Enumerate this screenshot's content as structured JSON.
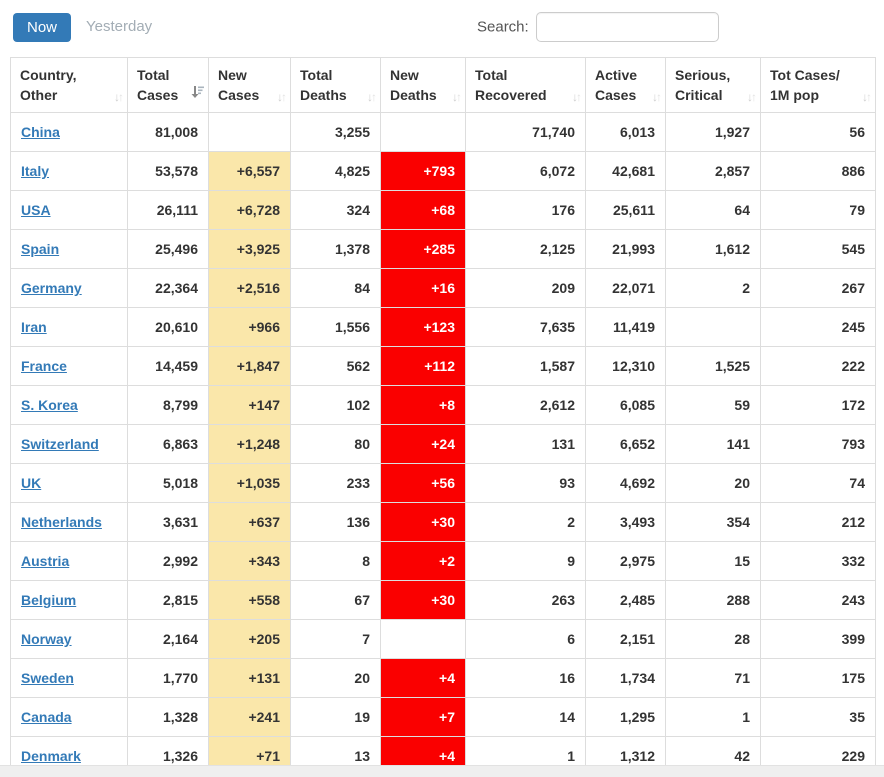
{
  "tabs": {
    "now": "Now",
    "yesterday": "Yesterday"
  },
  "search": {
    "label": "Search:",
    "value": "",
    "placeholder": ""
  },
  "colors": {
    "accent": "#337ab7",
    "link": "#337ab7",
    "new_cases_bg": "#FAE7AA",
    "new_deaths_bg": "#FA0000",
    "inactive_tab_text": "#a3adb5"
  },
  "icons": {
    "sort_unsorted": "sort-both-icon",
    "sort_active": "sort-descending-icon"
  },
  "table": {
    "columns": [
      {
        "id": "country",
        "lines": [
          "Country,",
          "Other"
        ],
        "sort": "unsorted"
      },
      {
        "id": "total_cases",
        "lines": [
          "Total",
          "Cases"
        ],
        "sort": "desc"
      },
      {
        "id": "new_cases",
        "lines": [
          "New",
          "Cases"
        ],
        "sort": "unsorted"
      },
      {
        "id": "total_deaths",
        "lines": [
          "Total",
          "Deaths"
        ],
        "sort": "unsorted"
      },
      {
        "id": "new_deaths",
        "lines": [
          "New",
          "Deaths"
        ],
        "sort": "unsorted"
      },
      {
        "id": "total_recovered",
        "lines": [
          "Total",
          "Recovered"
        ],
        "sort": "unsorted"
      },
      {
        "id": "active_cases",
        "lines": [
          "Active",
          "Cases"
        ],
        "sort": "unsorted"
      },
      {
        "id": "serious_critical",
        "lines": [
          "Serious,",
          "Critical"
        ],
        "sort": "unsorted"
      },
      {
        "id": "cases_1m_pop",
        "lines": [
          "Tot Cases/",
          "1M pop"
        ],
        "sort": "unsorted"
      }
    ],
    "rows": [
      {
        "country": "China",
        "total_cases": "81,008",
        "new_cases": "",
        "total_deaths": "3,255",
        "new_deaths": "",
        "total_recovered": "71,740",
        "active_cases": "6,013",
        "serious_critical": "1,927",
        "cases_1m_pop": "56"
      },
      {
        "country": "Italy",
        "total_cases": "53,578",
        "new_cases": "+6,557",
        "total_deaths": "4,825",
        "new_deaths": "+793",
        "total_recovered": "6,072",
        "active_cases": "42,681",
        "serious_critical": "2,857",
        "cases_1m_pop": "886"
      },
      {
        "country": "USA",
        "total_cases": "26,111",
        "new_cases": "+6,728",
        "total_deaths": "324",
        "new_deaths": "+68",
        "total_recovered": "176",
        "active_cases": "25,611",
        "serious_critical": "64",
        "cases_1m_pop": "79"
      },
      {
        "country": "Spain",
        "total_cases": "25,496",
        "new_cases": "+3,925",
        "total_deaths": "1,378",
        "new_deaths": "+285",
        "total_recovered": "2,125",
        "active_cases": "21,993",
        "serious_critical": "1,612",
        "cases_1m_pop": "545"
      },
      {
        "country": "Germany",
        "total_cases": "22,364",
        "new_cases": "+2,516",
        "total_deaths": "84",
        "new_deaths": "+16",
        "total_recovered": "209",
        "active_cases": "22,071",
        "serious_critical": "2",
        "cases_1m_pop": "267"
      },
      {
        "country": "Iran",
        "total_cases": "20,610",
        "new_cases": "+966",
        "total_deaths": "1,556",
        "new_deaths": "+123",
        "total_recovered": "7,635",
        "active_cases": "11,419",
        "serious_critical": "",
        "cases_1m_pop": "245"
      },
      {
        "country": "France",
        "total_cases": "14,459",
        "new_cases": "+1,847",
        "total_deaths": "562",
        "new_deaths": "+112",
        "total_recovered": "1,587",
        "active_cases": "12,310",
        "serious_critical": "1,525",
        "cases_1m_pop": "222"
      },
      {
        "country": "S. Korea",
        "total_cases": "8,799",
        "new_cases": "+147",
        "total_deaths": "102",
        "new_deaths": "+8",
        "total_recovered": "2,612",
        "active_cases": "6,085",
        "serious_critical": "59",
        "cases_1m_pop": "172"
      },
      {
        "country": "Switzerland",
        "total_cases": "6,863",
        "new_cases": "+1,248",
        "total_deaths": "80",
        "new_deaths": "+24",
        "total_recovered": "131",
        "active_cases": "6,652",
        "serious_critical": "141",
        "cases_1m_pop": "793"
      },
      {
        "country": "UK",
        "total_cases": "5,018",
        "new_cases": "+1,035",
        "total_deaths": "233",
        "new_deaths": "+56",
        "total_recovered": "93",
        "active_cases": "4,692",
        "serious_critical": "20",
        "cases_1m_pop": "74"
      },
      {
        "country": "Netherlands",
        "total_cases": "3,631",
        "new_cases": "+637",
        "total_deaths": "136",
        "new_deaths": "+30",
        "total_recovered": "2",
        "active_cases": "3,493",
        "serious_critical": "354",
        "cases_1m_pop": "212"
      },
      {
        "country": "Austria",
        "total_cases": "2,992",
        "new_cases": "+343",
        "total_deaths": "8",
        "new_deaths": "+2",
        "total_recovered": "9",
        "active_cases": "2,975",
        "serious_critical": "15",
        "cases_1m_pop": "332"
      },
      {
        "country": "Belgium",
        "total_cases": "2,815",
        "new_cases": "+558",
        "total_deaths": "67",
        "new_deaths": "+30",
        "total_recovered": "263",
        "active_cases": "2,485",
        "serious_critical": "288",
        "cases_1m_pop": "243"
      },
      {
        "country": "Norway",
        "total_cases": "2,164",
        "new_cases": "+205",
        "total_deaths": "7",
        "new_deaths": "",
        "total_recovered": "6",
        "active_cases": "2,151",
        "serious_critical": "28",
        "cases_1m_pop": "399"
      },
      {
        "country": "Sweden",
        "total_cases": "1,770",
        "new_cases": "+131",
        "total_deaths": "20",
        "new_deaths": "+4",
        "total_recovered": "16",
        "active_cases": "1,734",
        "serious_critical": "71",
        "cases_1m_pop": "175"
      },
      {
        "country": "Canada",
        "total_cases": "1,328",
        "new_cases": "+241",
        "total_deaths": "19",
        "new_deaths": "+7",
        "total_recovered": "14",
        "active_cases": "1,295",
        "serious_critical": "1",
        "cases_1m_pop": "35"
      },
      {
        "country": "Denmark",
        "total_cases": "1,326",
        "new_cases": "+71",
        "total_deaths": "13",
        "new_deaths": "+4",
        "total_recovered": "1",
        "active_cases": "1,312",
        "serious_critical": "42",
        "cases_1m_pop": "229"
      }
    ]
  }
}
